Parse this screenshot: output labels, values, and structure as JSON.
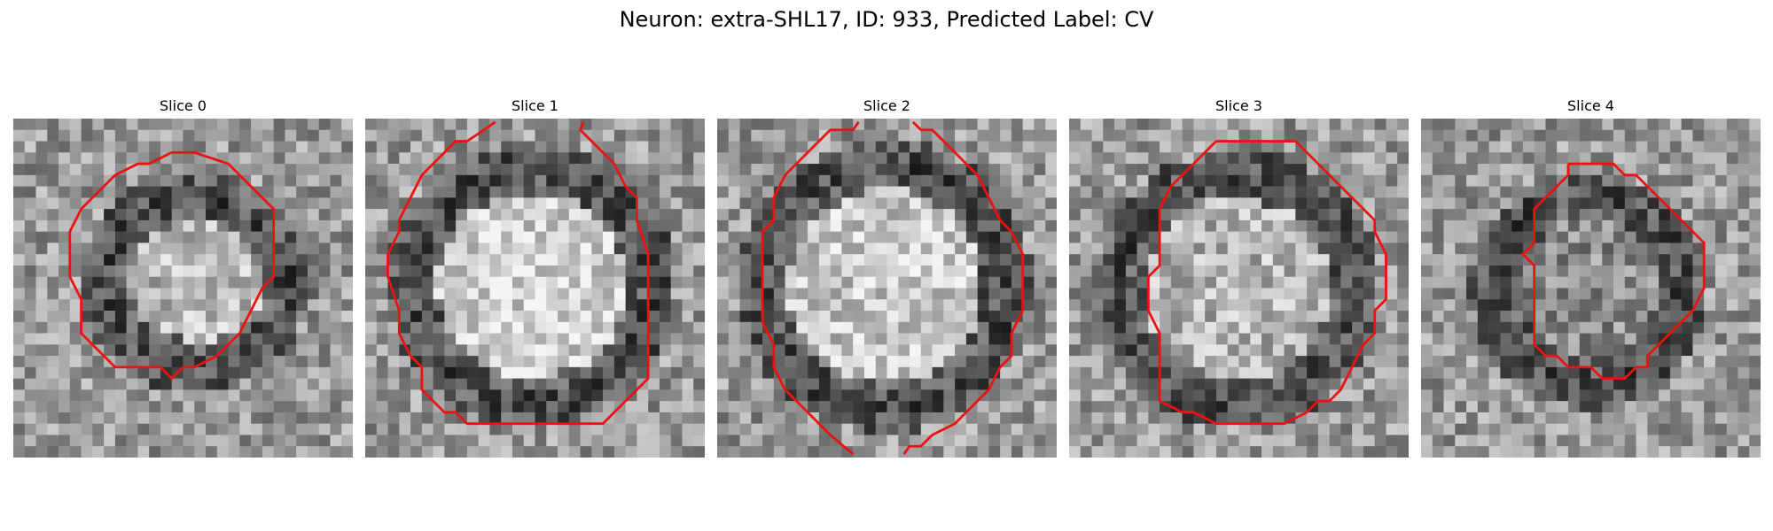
{
  "title": "Neuron: extra-SHL17, ID: 933, Predicted Label: CV",
  "colors": {
    "contour": "#ee1111"
  },
  "panels": [
    {
      "title": "Slice 0",
      "seed": 11,
      "ring": [
        0.2,
        0.26,
        0.36,
        0.18
      ],
      "interior": 0.72
    },
    {
      "title": "Slice 1",
      "seed": 23,
      "ring": [
        0.46,
        0.44,
        0.42,
        0.4
      ],
      "interior": 0.82
    },
    {
      "title": "Slice 2",
      "seed": 37,
      "ring": [
        0.46,
        0.46,
        0.44,
        0.44
      ],
      "interior": 0.78
    },
    {
      "title": "Slice 3",
      "seed": 41,
      "ring": [
        0.44,
        0.4,
        0.42,
        0.42
      ],
      "interior": 0.7
    },
    {
      "title": "Slice 4",
      "seed": 53,
      "ring": [
        0.3,
        0.28,
        0.26,
        0.3
      ],
      "interior": 0.55
    }
  ]
}
